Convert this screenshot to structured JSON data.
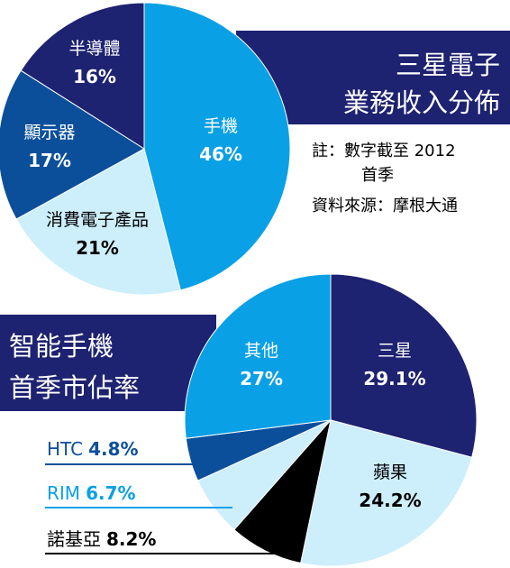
{
  "colors": {
    "navy": "#1d2271",
    "blue_dark": "#0b4f9b",
    "blue_mid": "#0aa0e6",
    "blue_light": "#cdeefb",
    "black": "#000000",
    "white": "#ffffff"
  },
  "chart_data": [
    {
      "type": "pie",
      "title": "三星電子業務收入分佈",
      "title_lines": [
        "三星電子",
        "業務收入分佈"
      ],
      "note_lines": [
        "註：數字截至 2012",
        "首季"
      ],
      "source": "資料來源：摩根大通",
      "slices": [
        {
          "label": "手機",
          "value": 46,
          "value_label": "46%",
          "color": "#0aa0e6",
          "text_color": "#ffffff"
        },
        {
          "label": "消費電子產品",
          "value": 21,
          "value_label": "21%",
          "color": "#cdeefb",
          "text_color": "#000000"
        },
        {
          "label": "顯示器",
          "value": 17,
          "value_label": "17%",
          "color": "#0b4f9b",
          "text_color": "#ffffff"
        },
        {
          "label": "半導體",
          "value": 16,
          "value_label": "16%",
          "color": "#1d2271",
          "text_color": "#ffffff"
        }
      ]
    },
    {
      "type": "pie",
      "title": "智能手機首季市佔率",
      "title_lines": [
        "智能手機",
        "首季市佔率"
      ],
      "slices": [
        {
          "label": "三星",
          "value": 29.1,
          "value_label": "29.1%",
          "color": "#1d2271",
          "text_color": "#ffffff"
        },
        {
          "label": "蘋果",
          "value": 24.2,
          "value_label": "24.2%",
          "color": "#cdeefb",
          "text_color": "#000000"
        },
        {
          "label": "諾基亞",
          "value": 8.2,
          "value_label": "8.2%",
          "color": "#000000",
          "text_color": "#000000",
          "callout": true
        },
        {
          "label": "RIM",
          "value": 6.7,
          "value_label": "6.7%",
          "color": "#cdeefb",
          "text_color": "#0aa0e6",
          "callout": true
        },
        {
          "label": "HTC",
          "value": 4.8,
          "value_label": "4.8%",
          "color": "#0b4f9b",
          "text_color": "#0b4f9b",
          "callout": true
        },
        {
          "label": "其他",
          "value": 27,
          "value_label": "27%",
          "color": "#0aa0e6",
          "text_color": "#ffffff"
        }
      ]
    }
  ]
}
